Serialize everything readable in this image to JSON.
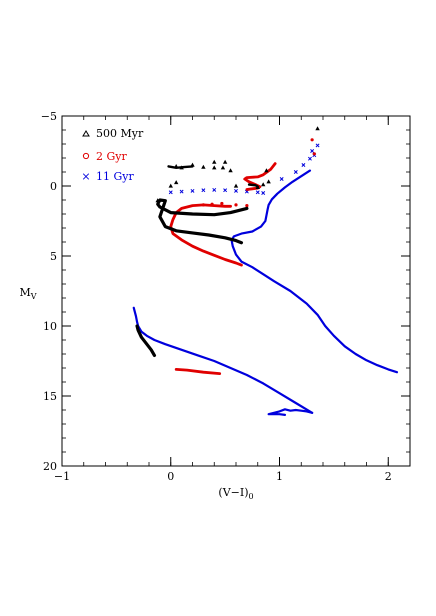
{
  "chart_data": {
    "type": "scatter",
    "xlabel": "(V−I)",
    "xlabel_sub": "0",
    "ylabel": "M",
    "ylabel_sub": "V",
    "xlim": [
      -1,
      2.2
    ],
    "ylim": [
      20,
      -5
    ],
    "y_inverted": true,
    "x_ticks": [
      {
        "value": -1,
        "label": "−1"
      },
      {
        "value": 0,
        "label": "0"
      },
      {
        "value": 1,
        "label": "1"
      },
      {
        "value": 2,
        "label": "2"
      }
    ],
    "y_ticks": [
      {
        "value": -5,
        "label": "−5"
      },
      {
        "value": 0,
        "label": "0"
      },
      {
        "value": 5,
        "label": "5"
      },
      {
        "value": 10,
        "label": "10"
      },
      {
        "value": 15,
        "label": "15"
      },
      {
        "value": 20,
        "label": "20"
      }
    ],
    "x_minor_step": 0.2,
    "y_minor_step": 1,
    "legend_position": "top-left",
    "series": [
      {
        "name": "500 Myr",
        "marker": "triangle",
        "color": "#000000",
        "curves": [
          [
            [
              -0.15,
              12.1
            ],
            [
              -0.18,
              11.7
            ],
            [
              -0.22,
              11.3
            ],
            [
              -0.27,
              10.8
            ],
            [
              -0.3,
              10.3
            ],
            [
              -0.31,
              10.0
            ]
          ],
          [
            [
              0.7,
              1.6
            ],
            [
              0.55,
              1.9
            ],
            [
              0.4,
              2.05
            ],
            [
              0.2,
              2.0
            ],
            [
              0.0,
              1.9
            ],
            [
              -0.1,
              1.5
            ],
            [
              -0.12,
              1.3
            ],
            [
              -0.1,
              1.0
            ],
            [
              -0.05,
              1.05
            ],
            [
              -0.1,
              2.2
            ],
            [
              -0.05,
              2.9
            ],
            [
              0.05,
              3.2
            ],
            [
              0.2,
              3.35
            ],
            [
              0.35,
              3.5
            ],
            [
              0.5,
              3.7
            ],
            [
              0.6,
              3.9
            ],
            [
              0.65,
              4.05
            ]
          ]
        ],
        "points": [
          [
            0.05,
            -1.4
          ],
          [
            0.1,
            -1.3
          ],
          [
            0.2,
            -1.5
          ],
          [
            0.3,
            -1.35
          ],
          [
            0.4,
            -1.3
          ],
          [
            0.48,
            -1.3
          ],
          [
            0.55,
            -1.1
          ],
          [
            0.8,
            0.1
          ],
          [
            0.85,
            -0.1
          ],
          [
            0.9,
            -0.3
          ],
          [
            0.88,
            -1.1
          ],
          [
            0.6,
            0.0
          ],
          [
            0.4,
            -1.7
          ],
          [
            0.5,
            -1.7
          ],
          [
            1.35,
            -4.1
          ],
          [
            0.0,
            0.0
          ],
          [
            0.05,
            -0.25
          ],
          [
            -0.12,
            1.05
          ]
        ],
        "dense_segments": [
          [
            [
              -0.02,
              -1.4
            ],
            [
              0.05,
              -1.3
            ],
            [
              0.12,
              -1.35
            ],
            [
              0.2,
              -1.4
            ]
          ],
          [
            [
              0.72,
              -0.1
            ],
            [
              0.78,
              -0.05
            ],
            [
              0.8,
              0.05
            ]
          ]
        ]
      },
      {
        "name": "2 Gyr",
        "marker": "circle",
        "color": "#e00000",
        "curves": [
          [
            [
              0.45,
              13.4
            ],
            [
              0.3,
              13.3
            ],
            [
              0.15,
              13.15
            ],
            [
              0.05,
              13.1
            ]
          ],
          [
            [
              0.65,
              5.65
            ],
            [
              0.6,
              5.5
            ],
            [
              0.5,
              5.25
            ],
            [
              0.4,
              4.95
            ],
            [
              0.3,
              4.65
            ],
            [
              0.2,
              4.3
            ],
            [
              0.1,
              3.85
            ],
            [
              0.02,
              3.4
            ],
            [
              0.0,
              2.9
            ],
            [
              0.02,
              2.4
            ],
            [
              0.05,
              1.9
            ],
            [
              0.1,
              1.6
            ],
            [
              0.2,
              1.4
            ],
            [
              0.3,
              1.35
            ],
            [
              0.4,
              1.4
            ],
            [
              0.5,
              1.45
            ],
            [
              0.55,
              1.45
            ]
          ],
          [
            [
              0.7,
              0.25
            ],
            [
              0.75,
              0.2
            ],
            [
              0.8,
              0.15
            ],
            [
              0.82,
              0.05
            ],
            [
              0.78,
              -0.1
            ],
            [
              0.72,
              -0.3
            ],
            [
              0.68,
              -0.5
            ],
            [
              0.7,
              -0.6
            ],
            [
              0.8,
              -0.65
            ],
            [
              0.85,
              -0.8
            ],
            [
              0.92,
              -1.2
            ],
            [
              0.96,
              -1.6
            ]
          ]
        ],
        "points": [
          [
            0.3,
            1.35
          ],
          [
            0.38,
            1.3
          ],
          [
            0.47,
            1.25
          ],
          [
            0.6,
            1.35
          ],
          [
            0.7,
            1.4
          ],
          [
            1.3,
            -3.3
          ],
          [
            1.32,
            -2.3
          ]
        ],
        "dense_segments": []
      },
      {
        "name": "11 Gyr",
        "marker": "cross",
        "color": "#0000dd",
        "curves": [
          [
            [
              1.3,
              16.2
            ],
            [
              1.25,
              16.1
            ],
            [
              1.2,
              16.05
            ],
            [
              1.15,
              16.0
            ],
            [
              1.1,
              16.05
            ],
            [
              1.05,
              15.95
            ],
            [
              1.0,
              16.1
            ],
            [
              0.95,
              16.2
            ],
            [
              0.9,
              16.3
            ],
            [
              1.0,
              16.3
            ],
            [
              1.05,
              16.35
            ]
          ],
          [
            [
              1.3,
              16.2
            ],
            [
              1.15,
              15.5
            ],
            [
              1.0,
              14.8
            ],
            [
              0.85,
              14.1
            ],
            [
              0.7,
              13.5
            ],
            [
              0.55,
              13.0
            ],
            [
              0.4,
              12.5
            ],
            [
              0.25,
              12.1
            ],
            [
              0.1,
              11.7
            ],
            [
              -0.05,
              11.3
            ],
            [
              -0.15,
              11.0
            ],
            [
              -0.22,
              10.7
            ],
            [
              -0.27,
              10.4
            ],
            [
              -0.3,
              10.0
            ],
            [
              -0.31,
              9.7
            ],
            [
              -0.32,
              9.3
            ],
            [
              -0.33,
              9.0
            ],
            [
              -0.34,
              8.7
            ]
          ],
          [
            [
              2.08,
              13.3
            ],
            [
              2.0,
              13.1
            ],
            [
              1.9,
              12.8
            ],
            [
              1.8,
              12.45
            ],
            [
              1.7,
              12.0
            ],
            [
              1.6,
              11.45
            ],
            [
              1.5,
              10.7
            ],
            [
              1.42,
              10.0
            ],
            [
              1.35,
              9.2
            ],
            [
              1.25,
              8.4
            ],
            [
              1.1,
              7.5
            ],
            [
              0.95,
              6.8
            ],
            [
              0.85,
              6.3
            ],
            [
              0.75,
              5.8
            ],
            [
              0.65,
              5.4
            ],
            [
              0.6,
              4.9
            ],
            [
              0.57,
              4.3
            ],
            [
              0.56,
              3.9
            ],
            [
              0.58,
              3.6
            ],
            [
              0.65,
              3.4
            ],
            [
              0.75,
              3.25
            ],
            [
              0.83,
              2.9
            ],
            [
              0.87,
              2.5
            ],
            [
              0.88,
              2.1
            ],
            [
              0.89,
              1.7
            ],
            [
              0.9,
              1.35
            ],
            [
              0.93,
              0.95
            ],
            [
              0.98,
              0.55
            ],
            [
              1.05,
              0.1
            ],
            [
              1.12,
              -0.3
            ],
            [
              1.2,
              -0.7
            ],
            [
              1.28,
              -1.1
            ]
          ]
        ],
        "points": [
          [
            0.0,
            0.45
          ],
          [
            0.1,
            0.4
          ],
          [
            0.2,
            0.35
          ],
          [
            0.3,
            0.3
          ],
          [
            0.4,
            0.28
          ],
          [
            0.5,
            0.3
          ],
          [
            0.6,
            0.35
          ],
          [
            0.7,
            0.4
          ],
          [
            0.8,
            0.45
          ],
          [
            0.85,
            0.5
          ],
          [
            1.02,
            -0.5
          ],
          [
            1.15,
            -1.0
          ],
          [
            1.22,
            -1.5
          ],
          [
            1.28,
            -1.95
          ],
          [
            1.32,
            -2.2
          ],
          [
            1.35,
            -2.9
          ],
          [
            1.3,
            -2.5
          ]
        ],
        "dense_segments": []
      }
    ]
  }
}
